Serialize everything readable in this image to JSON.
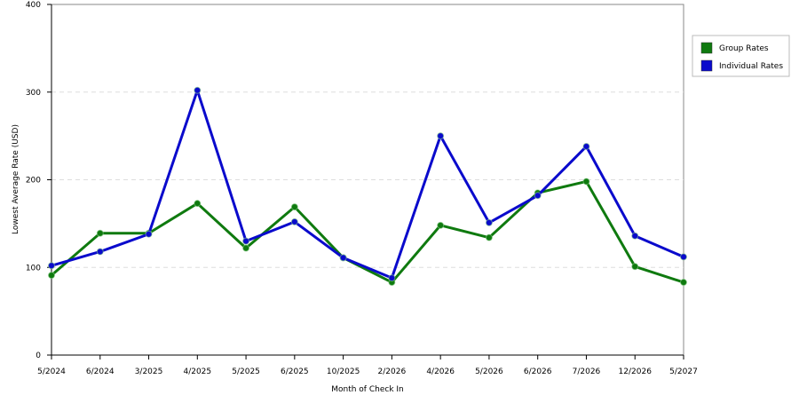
{
  "chart_data": {
    "type": "line",
    "x_label": "Month of Check In",
    "y_label": "Lowest Average Rate (USD)",
    "categories": [
      "5/2024",
      "6/2024",
      "3/2025",
      "4/2025",
      "5/2025",
      "6/2025",
      "10/2025",
      "2/2026",
      "4/2026",
      "5/2026",
      "6/2026",
      "7/2026",
      "12/2026",
      "5/2027"
    ],
    "series": [
      {
        "name": "Group Rates",
        "color": "#0f7a0f",
        "values": [
          91,
          139,
          139,
          173,
          122,
          169,
          111,
          83,
          148,
          134,
          185,
          198,
          101,
          83
        ]
      },
      {
        "name": "Individual Rates",
        "color": "#0a0acc",
        "values": [
          102,
          118,
          138,
          302,
          130,
          152,
          111,
          88,
          250,
          151,
          182,
          238,
          136,
          112
        ]
      }
    ],
    "ylim": [
      0,
      400
    ],
    "yticks": [
      0,
      100,
      200,
      300,
      400
    ],
    "grid": true,
    "legend": "right"
  }
}
